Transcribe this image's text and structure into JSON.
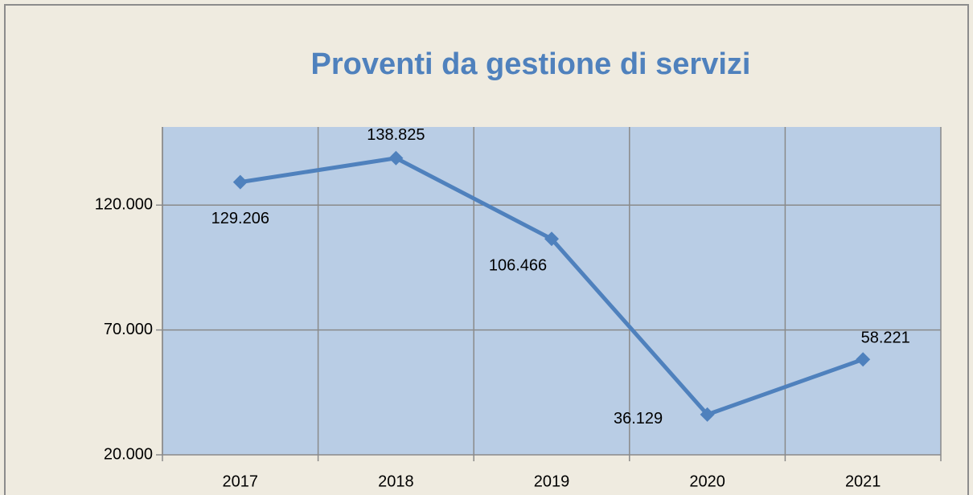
{
  "chart_data": {
    "type": "line",
    "title": "Proventi da gestione di servizi",
    "categories": [
      "2017",
      "2018",
      "2019",
      "2020",
      "2021"
    ],
    "series": [
      {
        "name": "Proventi da gestione di servizi",
        "color": "#4f81bd",
        "values": [
          129206,
          138825,
          106466,
          36129,
          58221
        ],
        "value_labels": [
          "129.206",
          "138.825",
          "106.466",
          "36.129",
          "58.221"
        ]
      }
    ],
    "ylim": [
      20000,
      150000
    ],
    "yticks": [
      {
        "value": 20000,
        "label": "20.000"
      },
      {
        "value": 70000,
        "label": "70.000"
      },
      {
        "value": 120000,
        "label": "120.000"
      }
    ],
    "grid": true
  }
}
